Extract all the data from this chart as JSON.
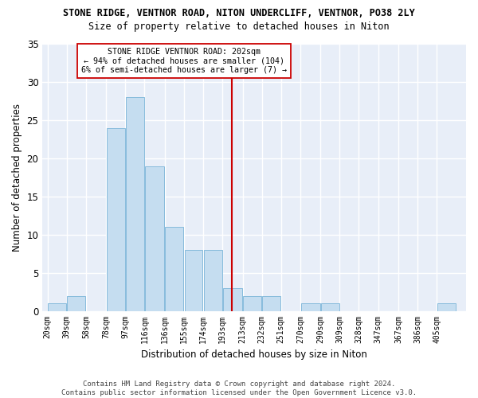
{
  "title": "STONE RIDGE, VENTNOR ROAD, NITON UNDERCLIFF, VENTNOR, PO38 2LY",
  "subtitle": "Size of property relative to detached houses in Niton",
  "xlabel": "Distribution of detached houses by size in Niton",
  "ylabel": "Number of detached properties",
  "footer_line1": "Contains HM Land Registry data © Crown copyright and database right 2024.",
  "footer_line2": "Contains public sector information licensed under the Open Government Licence v3.0.",
  "annotation_line1": "    STONE RIDGE VENTNOR ROAD: 202sqm    ",
  "annotation_line2": "← 94% of detached houses are smaller (104)",
  "annotation_line3": "6% of semi-detached houses are larger (7) →",
  "bar_color": "#c5ddf0",
  "bar_edge_color": "#7ab4d8",
  "bg_color": "#e8eef8",
  "grid_color": "#ffffff",
  "vline_color": "#cc0000",
  "vline_x": 202,
  "categories": [
    "20sqm",
    "39sqm",
    "58sqm",
    "78sqm",
    "97sqm",
    "116sqm",
    "136sqm",
    "155sqm",
    "174sqm",
    "193sqm",
    "213sqm",
    "232sqm",
    "251sqm",
    "270sqm",
    "290sqm",
    "309sqm",
    "328sqm",
    "347sqm",
    "367sqm",
    "386sqm",
    "405sqm"
  ],
  "bin_edges": [
    20,
    39,
    58,
    78,
    97,
    116,
    136,
    155,
    174,
    193,
    213,
    232,
    251,
    270,
    290,
    309,
    328,
    347,
    367,
    386,
    405,
    424
  ],
  "heights": [
    1,
    2,
    0,
    24,
    28,
    19,
    11,
    8,
    8,
    3,
    2,
    2,
    0,
    1,
    1,
    0,
    0,
    0,
    0,
    0,
    1
  ],
  "ylim": [
    0,
    35
  ],
  "yticks": [
    0,
    5,
    10,
    15,
    20,
    25,
    30,
    35
  ]
}
